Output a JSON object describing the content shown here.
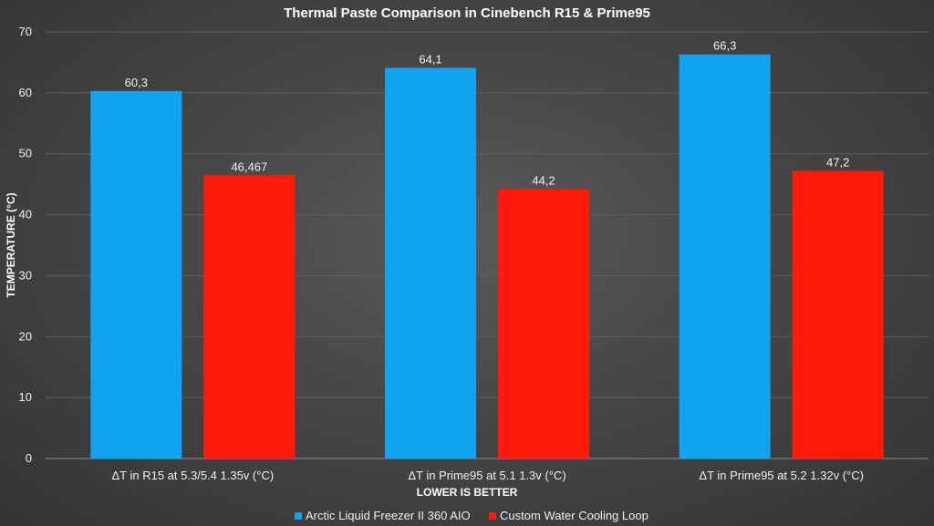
{
  "chart_data": {
    "type": "bar",
    "title": "Thermal Paste Comparison in Cinebench R15 & Prime95",
    "xlabel": "LOWER IS BETTER",
    "ylabel": "TEMPERATURE (°C)",
    "ylim": [
      0,
      70
    ],
    "yticks": [
      "0",
      "10",
      "20",
      "30",
      "40",
      "50",
      "60",
      "70"
    ],
    "grid": true,
    "legend_position": "bottom",
    "categories": [
      "ΔT in R15 at 5.3/5.4 1.35v (°C)",
      "ΔT in Prime95 at 5.1 1.3v (°C)",
      "ΔT in Prime95 at 5.2 1.32v (°C)"
    ],
    "series": [
      {
        "name": "Arctic Liquid Freezer II 360 AIO",
        "color": "#0fa3f0",
        "values": [
          60.3,
          64.1,
          66.3
        ],
        "labels": [
          "60,3",
          "64,1",
          "66,3"
        ]
      },
      {
        "name": "Custom Water Cooling Loop",
        "color": "#ff1a0a",
        "values": [
          46.467,
          44.2,
          47.2
        ],
        "labels": [
          "46,467",
          "44,2",
          "47,2"
        ]
      }
    ]
  }
}
